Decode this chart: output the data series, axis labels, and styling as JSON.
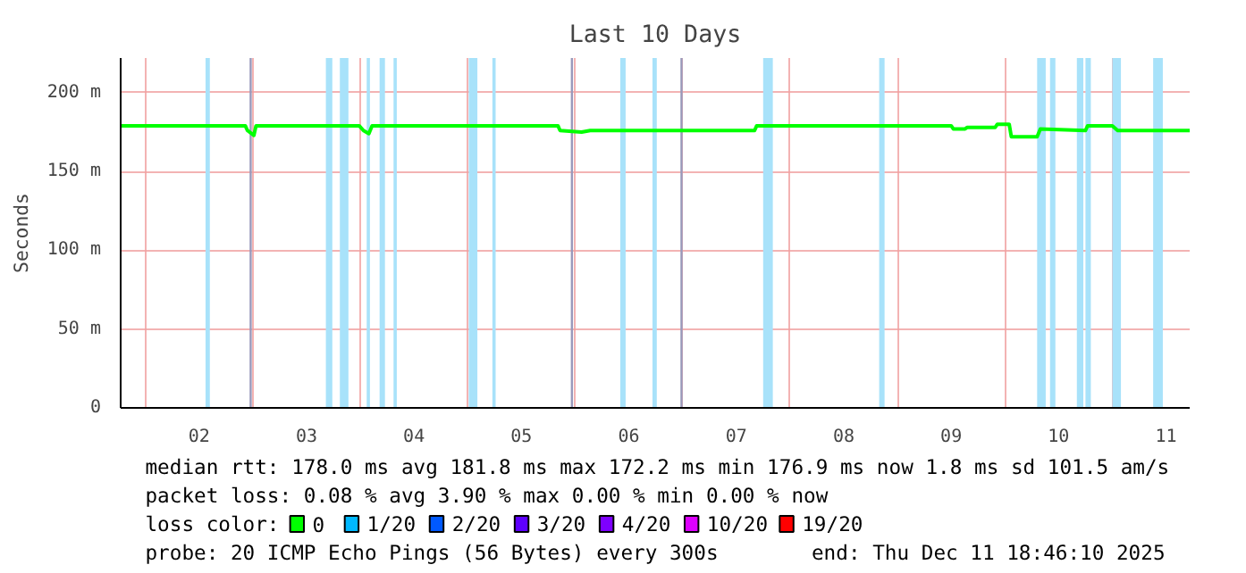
{
  "chart_data": {
    "type": "line",
    "title": "Last 10 Days",
    "ylabel": "Seconds",
    "x": [
      1.77,
      2.93,
      2.95,
      3.01,
      3.03,
      3.99,
      4.03,
      4.08,
      4.11,
      5.84,
      5.86,
      6.06,
      6.14,
      7.67,
      7.69,
      9.5,
      9.52,
      9.63,
      9.65,
      9.91,
      9.93,
      10.04,
      10.06,
      10.3,
      10.33,
      10.75,
      10.77,
      11.0,
      11.05,
      11.72
    ],
    "series": [
      {
        "name": "0",
        "color": "#00ff00",
        "values": [
          179,
          179,
          176,
          173,
          179,
          179,
          176,
          174,
          179,
          179,
          176,
          175,
          176,
          176,
          179,
          179,
          177,
          177,
          178,
          178,
          180,
          180,
          172,
          172,
          177,
          176,
          179,
          179,
          176,
          176
        ]
      },
      {
        "name": "1/20",
        "color": "#00b8ff",
        "values": [
          null,
          null,
          null,
          null,
          null,
          null,
          null,
          null,
          null,
          null,
          null,
          null,
          null,
          null,
          null,
          null,
          null,
          null,
          null,
          null,
          null,
          null,
          null,
          null,
          null,
          null,
          null,
          null,
          null,
          null
        ]
      },
      {
        "name": "2/20",
        "color": "#0059ff",
        "values": [
          null,
          null,
          null,
          null,
          null,
          null,
          null,
          null,
          null,
          null,
          null,
          null,
          null,
          null,
          null,
          null,
          null,
          null,
          null,
          null,
          null,
          null,
          null,
          null,
          null,
          null,
          null,
          null,
          null,
          null
        ]
      },
      {
        "name": "3/20",
        "color": "#5e00ff",
        "values": [
          null,
          null,
          null,
          null,
          null,
          null,
          null,
          null,
          null,
          null,
          null,
          null,
          null,
          null,
          null,
          null,
          null,
          null,
          null,
          null,
          null,
          null,
          null,
          null,
          null,
          null,
          null,
          null,
          null,
          null
        ]
      },
      {
        "name": "4/20",
        "color": "#7e00ff",
        "values": [
          null,
          null,
          null,
          null,
          null,
          null,
          null,
          null,
          null,
          null,
          null,
          null,
          null,
          null,
          null,
          null,
          null,
          null,
          null,
          null,
          null,
          null,
          null,
          null,
          null,
          null,
          null,
          null,
          null,
          null
        ]
      },
      {
        "name": "10/20",
        "color": "#dd00ff",
        "values": [
          null,
          null,
          null,
          null,
          null,
          null,
          null,
          null,
          null,
          null,
          null,
          null,
          null,
          null,
          null,
          null,
          null,
          null,
          null,
          null,
          null,
          null,
          null,
          null,
          null,
          null,
          null,
          null,
          null,
          null
        ]
      },
      {
        "name": "19/20",
        "color": "#ff0000",
        "values": [
          null,
          null,
          null,
          null,
          null,
          null,
          null,
          null,
          null,
          null,
          null,
          null,
          null,
          null,
          null,
          null,
          null,
          null,
          null,
          null,
          null,
          null,
          null,
          null,
          null,
          null,
          null,
          null,
          null,
          null
        ]
      }
    ],
    "legend": "bottom",
    "legend_title": "loss color:",
    "xlim": [
      1.77,
      11.72
    ],
    "xticks": [
      {
        "value": 2,
        "label": null
      },
      {
        "value": 2.5,
        "label": "02"
      },
      {
        "value": 3,
        "label": null
      },
      {
        "value": 3.5,
        "label": "03"
      },
      {
        "value": 4,
        "label": null
      },
      {
        "value": 4.5,
        "label": "04"
      },
      {
        "value": 5,
        "label": null
      },
      {
        "value": 5.5,
        "label": "05"
      },
      {
        "value": 6,
        "label": null
      },
      {
        "value": 6.5,
        "label": "06"
      },
      {
        "value": 7,
        "label": null
      },
      {
        "value": 7.5,
        "label": "07"
      },
      {
        "value": 8,
        "label": null
      },
      {
        "value": 8.5,
        "label": "08"
      },
      {
        "value": 9,
        "label": null
      },
      {
        "value": 9.5,
        "label": "09"
      },
      {
        "value": 10,
        "label": null
      },
      {
        "value": 10.5,
        "label": "10"
      },
      {
        "value": 11,
        "label": null
      },
      {
        "value": 11.5,
        "label": "11"
      }
    ],
    "ylim": [
      0,
      222
    ],
    "yticks": [
      0,
      {
        "value": 50,
        "label": "50 m"
      },
      {
        "value": 100,
        "label": "100 m"
      },
      {
        "value": 150,
        "label": "150 m"
      },
      {
        "value": 200,
        "label": "200 m"
      }
    ],
    "grid": true,
    "bands": [
      {
        "axis": "x",
        "from": 2.56,
        "to": 2.6,
        "color": "#a8e2fa"
      },
      {
        "axis": "x",
        "from": 3.68,
        "to": 3.74,
        "color": "#a8e2fa"
      },
      {
        "axis": "x",
        "from": 3.81,
        "to": 3.89,
        "color": "#a8e2fa"
      },
      {
        "axis": "x",
        "from": 4.06,
        "to": 4.09,
        "color": "#a8e2fa"
      },
      {
        "axis": "x",
        "from": 4.18,
        "to": 4.23,
        "color": "#a8e2fa"
      },
      {
        "axis": "x",
        "from": 4.31,
        "to": 4.34,
        "color": "#a8e2fa"
      },
      {
        "axis": "x",
        "from": 5.01,
        "to": 5.09,
        "color": "#a8e2fa"
      },
      {
        "axis": "x",
        "from": 5.23,
        "to": 5.26,
        "color": "#a8e2fa"
      },
      {
        "axis": "x",
        "from": 6.42,
        "to": 6.47,
        "color": "#a8e2fa"
      },
      {
        "axis": "x",
        "from": 6.72,
        "to": 6.76,
        "color": "#a8e2fa"
      },
      {
        "axis": "x",
        "from": 7.75,
        "to": 7.84,
        "color": "#a8e2fa"
      },
      {
        "axis": "x",
        "from": 8.83,
        "to": 8.88,
        "color": "#a8e2fa"
      },
      {
        "axis": "x",
        "from": 10.3,
        "to": 10.38,
        "color": "#a8e2fa"
      },
      {
        "axis": "x",
        "from": 10.42,
        "to": 10.47,
        "color": "#a8e2fa"
      },
      {
        "axis": "x",
        "from": 10.67,
        "to": 10.73,
        "color": "#a8e2fa"
      },
      {
        "axis": "x",
        "from": 10.75,
        "to": 10.8,
        "color": "#a8e2fa"
      },
      {
        "axis": "x",
        "from": 11.0,
        "to": 11.08,
        "color": "#a8e2fa"
      },
      {
        "axis": "x",
        "from": 11.38,
        "to": 11.47,
        "color": "#a8e2fa"
      },
      {
        "axis": "x",
        "from": 2.97,
        "to": 2.99,
        "color": "#9999bb"
      },
      {
        "axis": "x",
        "from": 5.96,
        "to": 5.98,
        "color": "#9999bb"
      },
      {
        "axis": "x",
        "from": 6.98,
        "to": 7.0,
        "color": "#9999bb"
      }
    ],
    "annotations": [
      "median rtt:  178.0 ms avg  181.8 ms max  172.2 ms min  176.9 ms now  1.8 ms sd  101.5   am/s",
      "packet loss: 0.08 % avg  3.90 % max  0.00 % min  0.00 % now",
      "probe:        20 ICMP Echo Pings (56 Bytes) every 300s",
      "end: Thu Dec 11 18:46:10 2025"
    ]
  }
}
